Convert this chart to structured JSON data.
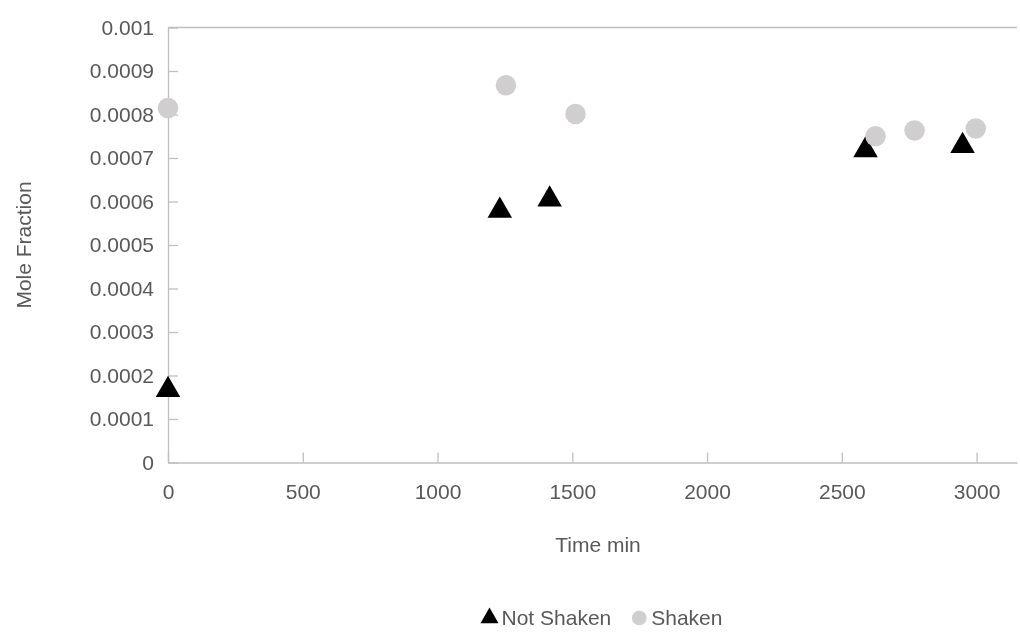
{
  "chart_data": {
    "type": "scatter",
    "xlabel": "Time min",
    "ylabel": "Mole Fraction",
    "xlim": [
      0,
      3150
    ],
    "xticks": [
      0,
      500,
      1000,
      1500,
      2000,
      2500,
      3000
    ],
    "ylim": [
      0,
      0.001
    ],
    "yticks": [
      0,
      0.0001,
      0.0002,
      0.0003,
      0.0004,
      0.0005,
      0.0006,
      0.0007,
      0.0008,
      0.0009,
      0.001
    ],
    "grid": false,
    "legend": "bottom",
    "series": [
      {
        "name": "Not Shaken",
        "color": "#000000",
        "marker": "triangle",
        "x": [
          0,
          1231,
          1416,
          2588,
          2948
        ],
        "values": [
          0.000167,
          0.000579,
          0.000605,
          0.000718,
          0.000728
        ]
      },
      {
        "name": "Shaken",
        "color": "#d0cece",
        "marker": "circle",
        "x": [
          0,
          1254,
          1512,
          2625,
          2770,
          2997
        ],
        "values": [
          0.000815,
          0.000867,
          0.000801,
          0.00075,
          0.000763,
          0.000768
        ]
      }
    ]
  }
}
